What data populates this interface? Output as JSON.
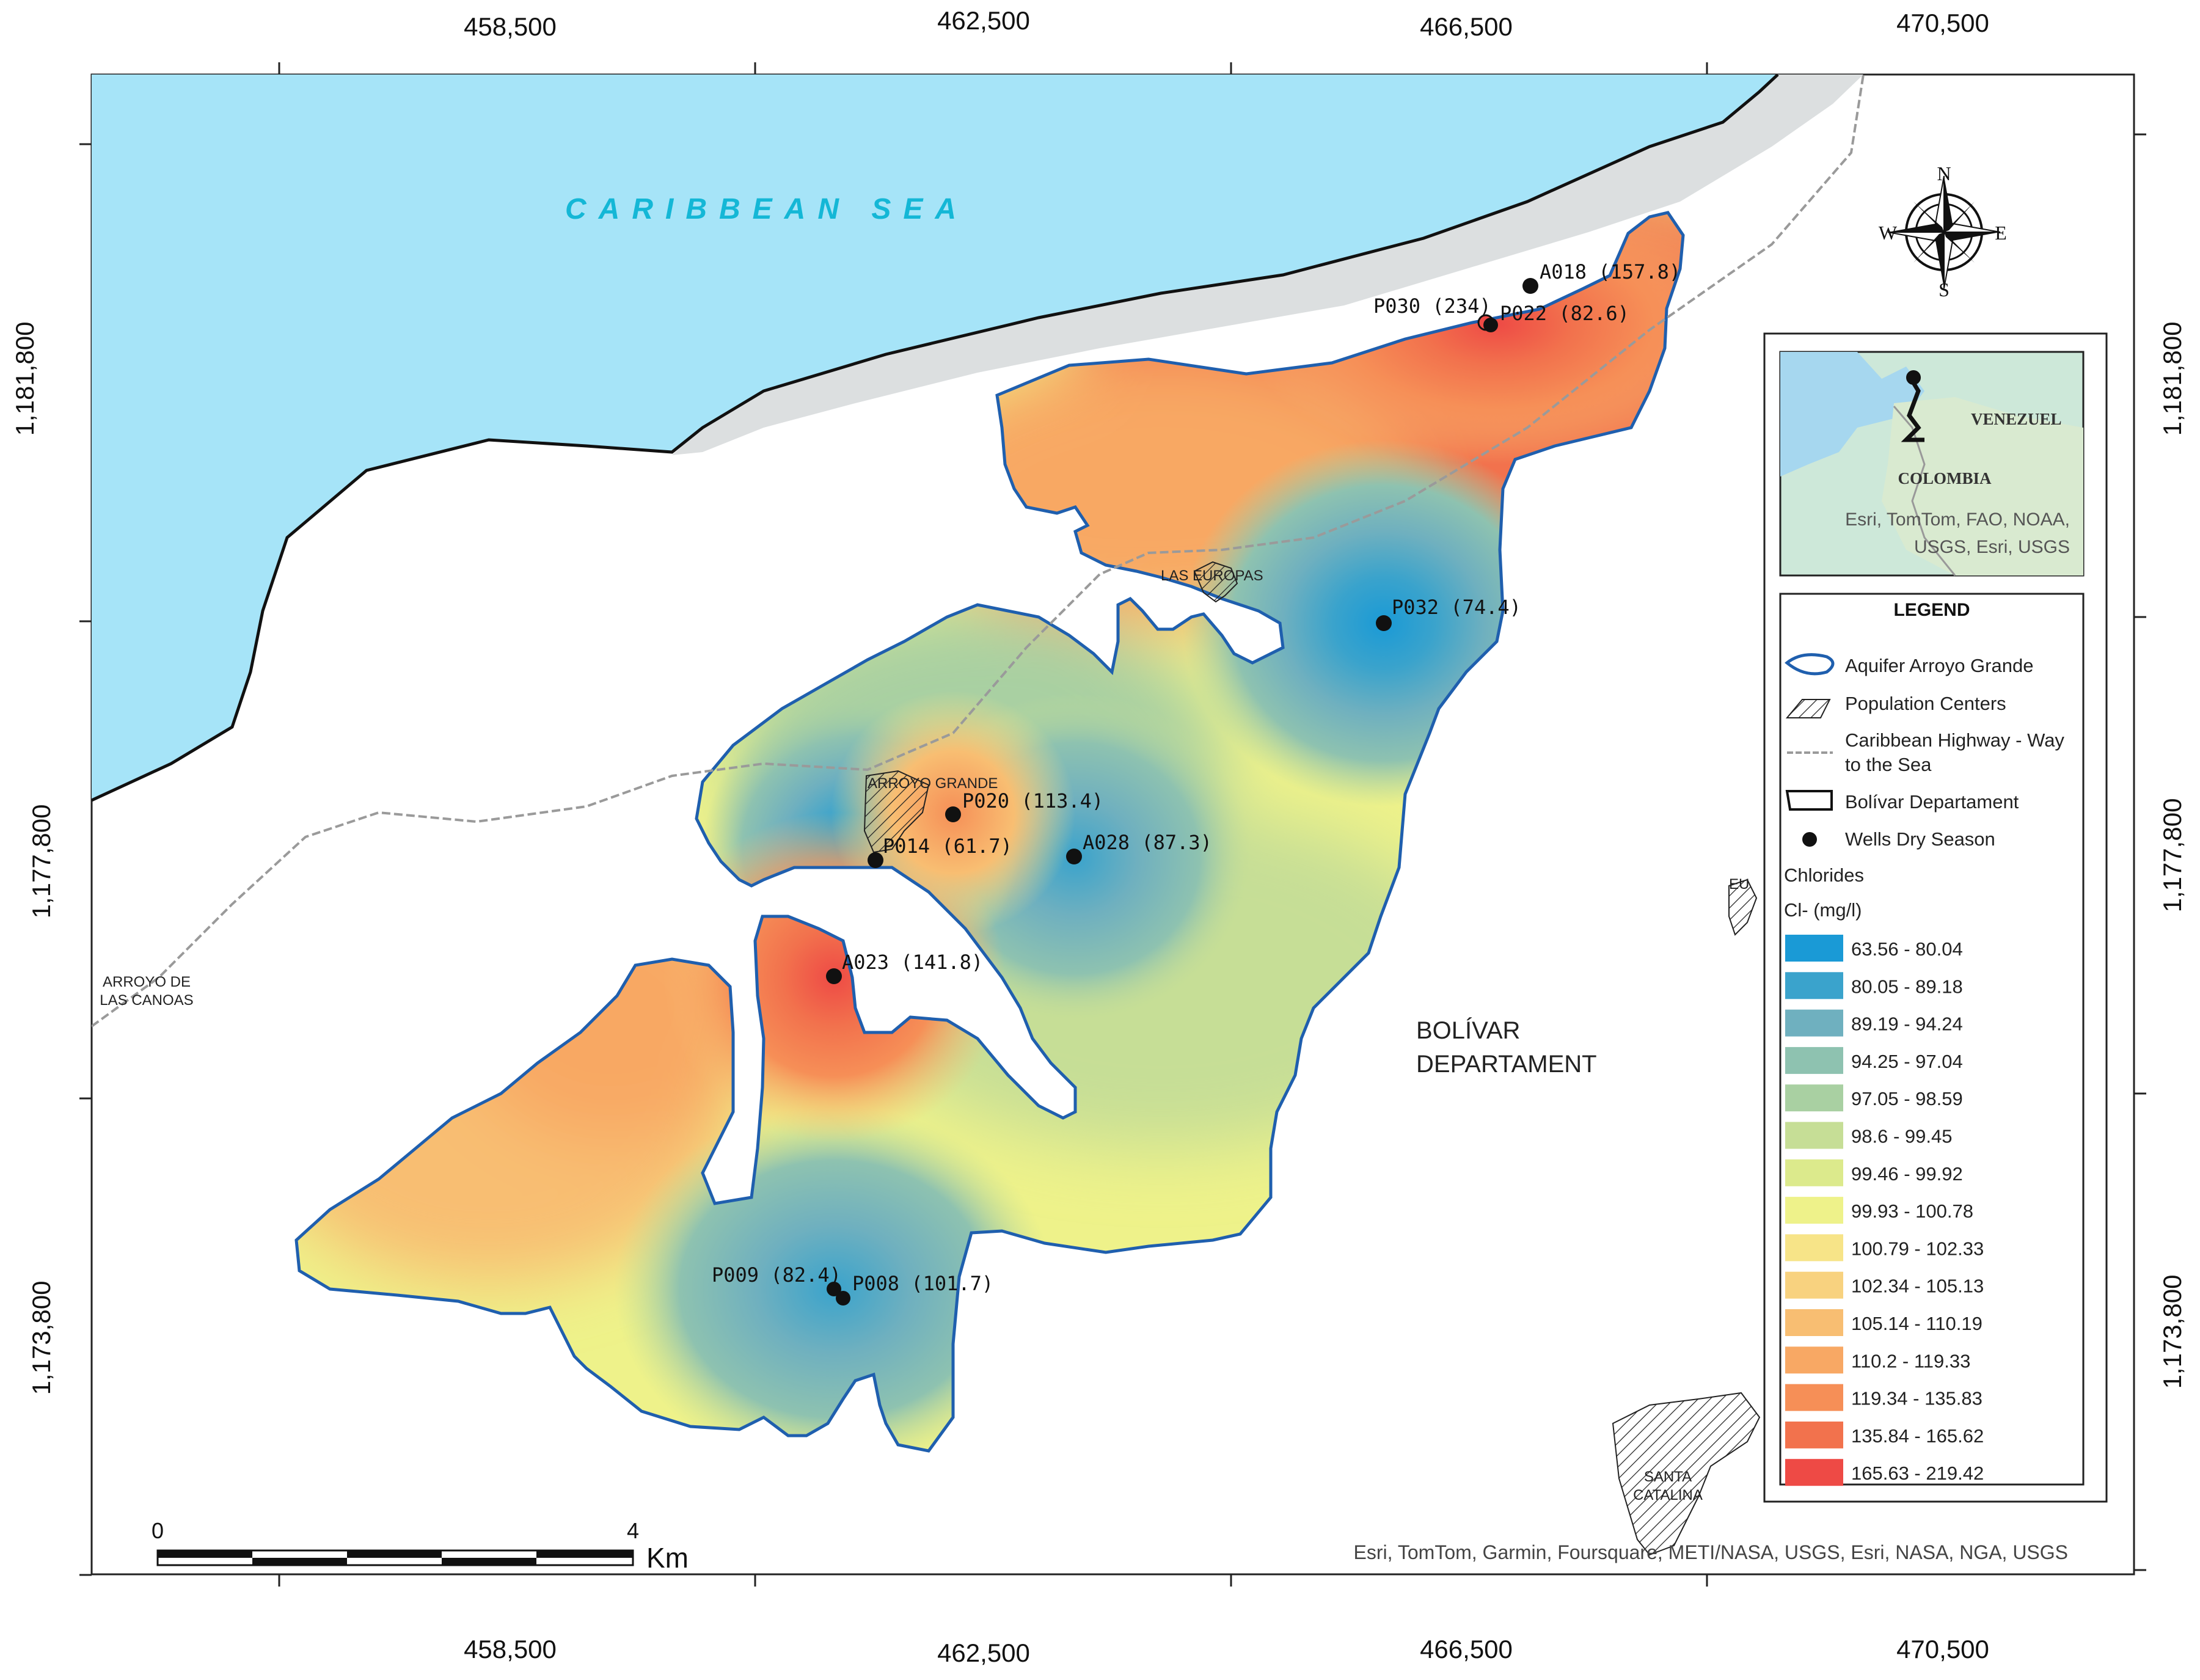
{
  "grid": {
    "x_ticks_top": [
      "458,500",
      "462,500",
      "466,500",
      "470,500"
    ],
    "x_ticks_bottom": [
      "458,500",
      "462,500",
      "466,500",
      "470,500"
    ],
    "y_ticks_left": [
      "1,181,800",
      "1,177,800",
      "1,173,800"
    ],
    "y_ticks_right": [
      "1,181,800",
      "1,177,800",
      "1,173,800"
    ]
  },
  "labels": {
    "sea": "CARIBBEAN SEA",
    "department_line1": "BOLÍVAR",
    "department_line2": "DEPARTAMENT",
    "town_las_europas": "LAS EUROPAS",
    "town_arroyo_grande": "ARROYO GRANDE",
    "town_arroyo_canoas_1": "ARROYO DE",
    "town_arroyo_canoas_2": "LAS CANOAS",
    "town_santa_catalina_1": "SANTA",
    "town_santa_catalina_2": "CATALINA",
    "town_eu": "EU"
  },
  "wells": [
    {
      "label": "A018 (157.8)"
    },
    {
      "label": "P030 (234)"
    },
    {
      "label": "P022 (82.6)"
    },
    {
      "label": "P032 (74.4)"
    },
    {
      "label": "P020 (113.4)"
    },
    {
      "label": "P014 (61.7)"
    },
    {
      "label": "A028 (87.3)"
    },
    {
      "label": "A023 (141.8)"
    },
    {
      "label": "P009 (82.4)"
    },
    {
      "label": "P008 (101.7)"
    }
  ],
  "compass": {
    "n": "N",
    "s": "S",
    "e": "E",
    "w": "W"
  },
  "inset": {
    "country_1": "VENEZUEL",
    "country_2": "COLOMBIA",
    "attribution_1": "Esri, TomTom, FAO, NOAA,",
    "attribution_2": "USGS, Esri, USGS"
  },
  "legend": {
    "title": "LEGEND",
    "items": [
      "Aquifer Arroyo Grande",
      "Population Centers",
      "Caribbean Highway - Way",
      "to the Sea",
      "Bolívar Departament",
      "Wells Dry Season"
    ],
    "chlorides_title": "Chlorides",
    "chlorides_unit": "Cl- (mg/l)",
    "classes": [
      {
        "range": "63.56 - 80.04",
        "color": "#1a9ad6"
      },
      {
        "range": "80.05 - 89.18",
        "color": "#3aa3cc"
      },
      {
        "range": "89.19 - 94.24",
        "color": "#6fb0bf"
      },
      {
        "range": "94.25 - 97.04",
        "color": "#8ec2b0"
      },
      {
        "range": "97.05 - 98.59",
        "color": "#a9d0a2"
      },
      {
        "range": "98.6 - 99.45",
        "color": "#c6de96"
      },
      {
        "range": "99.46 - 99.92",
        "color": "#dcea8c"
      },
      {
        "range": "99.93 - 100.78",
        "color": "#eef28a"
      },
      {
        "range": "100.79 - 102.33",
        "color": "#f7e488"
      },
      {
        "range": "102.34 - 105.13",
        "color": "#f8d27f"
      },
      {
        "range": "105.14 - 110.19",
        "color": "#f8be72"
      },
      {
        "range": "110.2 - 119.33",
        "color": "#f8a864"
      },
      {
        "range": "119.34 - 135.83",
        "color": "#f68f57"
      },
      {
        "range": "135.84 - 165.62",
        "color": "#f2724d"
      },
      {
        "range": "165.63 - 219.42",
        "color": "#ee4a45"
      }
    ]
  },
  "scalebar": {
    "start": "0",
    "end": "4",
    "unit": "Km"
  },
  "attribution": "Esri, TomTom, Garmin, Foursquare, METI/NASA, USGS, Esri, NASA, NGA, USGS",
  "colors": {
    "sea": "#a6e4f8",
    "shore": "#d8dcdc",
    "land": "#ffffff",
    "outline": "#1f5fae"
  }
}
